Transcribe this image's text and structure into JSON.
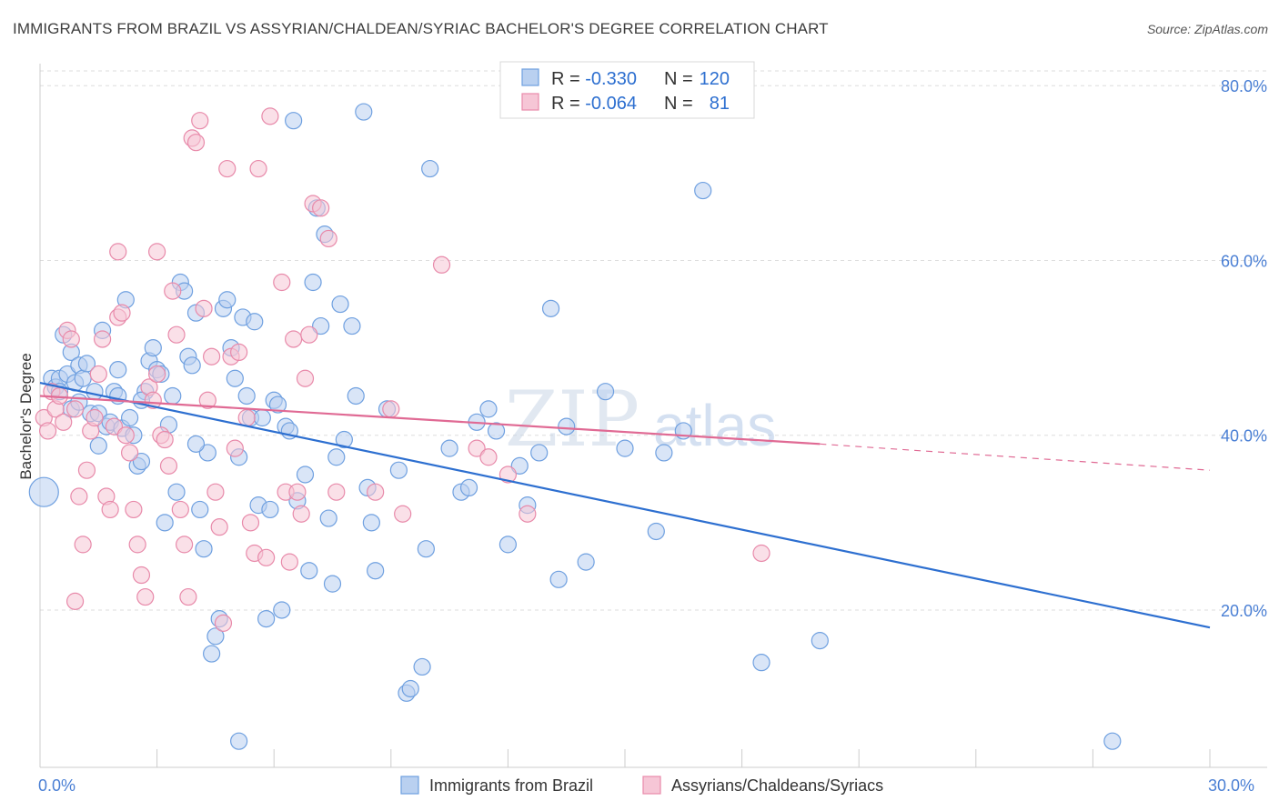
{
  "title": "IMMIGRANTS FROM BRAZIL VS ASSYRIAN/CHALDEAN/SYRIAC BACHELOR'S DEGREE CORRELATION CHART",
  "source": "Source: ZipAtlas.com",
  "watermark": {
    "zip": "ZIP",
    "atlas": "atlas"
  },
  "colors": {
    "blue": "#6fa0e0",
    "blue_fill": "#b9d0f0",
    "blue_line": "#2d6fd0",
    "pink": "#e88aaa",
    "pink_fill": "#f6c6d6",
    "pink_line": "#e06a94",
    "tick": "#4a7fd4",
    "grid": "#dddddd"
  },
  "legend": {
    "rows": [
      {
        "r_label": "R = ",
        "r_value": "-0.330",
        "n_label": "N = ",
        "n_value": "120"
      },
      {
        "r_label": "R = ",
        "r_value": "-0.064",
        "n_label": "N = ",
        "n_value": "81"
      }
    ]
  },
  "chart_data": {
    "type": "scatter",
    "title": "IMMIGRANTS FROM BRAZIL VS ASSYRIAN/CHALDEAN/SYRIAC BACHELOR'S DEGREE CORRELATION CHART",
    "xlabel": "",
    "ylabel": "Bachelor's Degree",
    "xlim": [
      0,
      30
    ],
    "ylim": [
      2,
      82
    ],
    "x_tick_labels": [
      "0.0%",
      "30.0%"
    ],
    "y_ticks": [
      20,
      40,
      60,
      80
    ],
    "y_tick_labels": [
      "20.0%",
      "40.0%",
      "60.0%",
      "80.0%"
    ],
    "grid": true,
    "legend_placement": "top-center",
    "series": [
      {
        "name": "Immigrants from Brazil",
        "r": -0.33,
        "n": 120,
        "trend": {
          "x": [
            0,
            30
          ],
          "y": [
            46.0,
            18.0
          ]
        },
        "points": [
          [
            0.1,
            33.5
          ],
          [
            0.3,
            46.5
          ],
          [
            0.4,
            45.5
          ],
          [
            0.5,
            46.5
          ],
          [
            0.6,
            51.5
          ],
          [
            0.7,
            47
          ],
          [
            0.8,
            49.5
          ],
          [
            0.8,
            43
          ],
          [
            0.9,
            46
          ],
          [
            1.0,
            48.0
          ],
          [
            1.1,
            46.5
          ],
          [
            1.2,
            48.2
          ],
          [
            1.3,
            42.5
          ],
          [
            1.4,
            45.0
          ],
          [
            1.5,
            42.5
          ],
          [
            1.6,
            52.0
          ],
          [
            1.7,
            41.0
          ],
          [
            1.8,
            41.5
          ],
          [
            1.9,
            45.0
          ],
          [
            2.0,
            44.5
          ],
          [
            2.1,
            40.8
          ],
          [
            2.2,
            55.5
          ],
          [
            2.3,
            42.0
          ],
          [
            2.4,
            40.0
          ],
          [
            2.5,
            36.5
          ],
          [
            2.6,
            37.0
          ],
          [
            2.7,
            45.0
          ],
          [
            2.8,
            48.5
          ],
          [
            2.9,
            50.0
          ],
          [
            3.0,
            47.5
          ],
          [
            3.1,
            47.0
          ],
          [
            3.2,
            30.0
          ],
          [
            3.4,
            44.5
          ],
          [
            3.5,
            33.5
          ],
          [
            3.6,
            57.5
          ],
          [
            3.7,
            56.5
          ],
          [
            3.8,
            49.0
          ],
          [
            3.9,
            48.0
          ],
          [
            4.0,
            54.0
          ],
          [
            4.1,
            31.5
          ],
          [
            4.2,
            27.0
          ],
          [
            4.3,
            38.0
          ],
          [
            4.4,
            15.0
          ],
          [
            4.5,
            17.0
          ],
          [
            4.6,
            19.0
          ],
          [
            4.7,
            54.5
          ],
          [
            4.8,
            55.5
          ],
          [
            4.9,
            50.0
          ],
          [
            5.0,
            46.5
          ],
          [
            5.1,
            37.5
          ],
          [
            5.2,
            53.5
          ],
          [
            5.3,
            44.5
          ],
          [
            5.4,
            42.0
          ],
          [
            5.5,
            53.0
          ],
          [
            5.6,
            32.0
          ],
          [
            5.7,
            42.0
          ],
          [
            5.8,
            19.0
          ],
          [
            5.9,
            31.5
          ],
          [
            6.0,
            44.0
          ],
          [
            6.1,
            43.5
          ],
          [
            6.2,
            20.0
          ],
          [
            6.3,
            41.0
          ],
          [
            6.4,
            40.5
          ],
          [
            6.5,
            76.0
          ],
          [
            6.8,
            35.5
          ],
          [
            6.9,
            24.5
          ],
          [
            7.0,
            57.5
          ],
          [
            7.1,
            66.0
          ],
          [
            7.2,
            52.5
          ],
          [
            7.3,
            63.0
          ],
          [
            7.5,
            23.0
          ],
          [
            7.6,
            37.5
          ],
          [
            7.7,
            55.0
          ],
          [
            7.8,
            39.5
          ],
          [
            8.0,
            52.5
          ],
          [
            8.1,
            44.5
          ],
          [
            8.3,
            77.0
          ],
          [
            8.4,
            34.0
          ],
          [
            8.5,
            30.0
          ],
          [
            8.6,
            24.5
          ],
          [
            8.9,
            43.0
          ],
          [
            9.2,
            36.0
          ],
          [
            9.4,
            10.5
          ],
          [
            9.5,
            11.0
          ],
          [
            9.8,
            13.5
          ],
          [
            9.9,
            27.0
          ],
          [
            10.0,
            70.5
          ],
          [
            10.5,
            38.5
          ],
          [
            10.8,
            33.5
          ],
          [
            11.0,
            34.0
          ],
          [
            11.2,
            41.5
          ],
          [
            11.5,
            43.0
          ],
          [
            11.7,
            40.5
          ],
          [
            12.0,
            27.5
          ],
          [
            12.3,
            36.5
          ],
          [
            12.5,
            32.0
          ],
          [
            12.8,
            38.0
          ],
          [
            13.1,
            54.5
          ],
          [
            13.3,
            23.5
          ],
          [
            13.5,
            41.0
          ],
          [
            14.0,
            25.5
          ],
          [
            14.5,
            45.0
          ],
          [
            15.0,
            38.5
          ],
          [
            15.8,
            29.0
          ],
          [
            16.0,
            38.0
          ],
          [
            16.5,
            40.5
          ],
          [
            17.0,
            68.0
          ],
          [
            18.5,
            14.0
          ],
          [
            20.0,
            16.5
          ],
          [
            27.5,
            5.0
          ],
          [
            5.1,
            5.0
          ],
          [
            1.0,
            43.8
          ],
          [
            2.6,
            44.0
          ],
          [
            3.3,
            41.2
          ],
          [
            0.5,
            45.0
          ],
          [
            1.5,
            38.8
          ],
          [
            2.0,
            47.5
          ],
          [
            4.0,
            39.0
          ],
          [
            6.6,
            32.5
          ],
          [
            7.4,
            30.5
          ]
        ]
      },
      {
        "name": "Assyrians/Chaldeans/Syriacs",
        "r": -0.064,
        "n": 81,
        "trend": {
          "x": [
            0,
            20
          ],
          "y": [
            44.5,
            39.0
          ],
          "dashed_x": [
            20,
            30
          ],
          "dashed_y": [
            39.0,
            36.0
          ]
        },
        "points": [
          [
            0.1,
            42.0
          ],
          [
            0.2,
            40.5
          ],
          [
            0.3,
            45.0
          ],
          [
            0.4,
            43.0
          ],
          [
            0.5,
            44.5
          ],
          [
            0.6,
            41.5
          ],
          [
            0.7,
            52.0
          ],
          [
            0.8,
            51.0
          ],
          [
            0.9,
            43.0
          ],
          [
            1.0,
            33.0
          ],
          [
            1.1,
            27.5
          ],
          [
            1.2,
            36.0
          ],
          [
            1.3,
            40.5
          ],
          [
            1.4,
            42.0
          ],
          [
            1.5,
            47.0
          ],
          [
            1.6,
            51.0
          ],
          [
            1.7,
            33.0
          ],
          [
            1.8,
            31.5
          ],
          [
            1.9,
            41.0
          ],
          [
            2.0,
            53.5
          ],
          [
            2.1,
            54.0
          ],
          [
            2.2,
            40.0
          ],
          [
            2.3,
            38.0
          ],
          [
            2.4,
            31.5
          ],
          [
            2.5,
            27.5
          ],
          [
            2.6,
            24.0
          ],
          [
            2.7,
            21.5
          ],
          [
            2.8,
            45.5
          ],
          [
            2.9,
            44.0
          ],
          [
            3.0,
            47.0
          ],
          [
            3.1,
            40.0
          ],
          [
            3.2,
            39.5
          ],
          [
            3.3,
            36.5
          ],
          [
            3.4,
            56.5
          ],
          [
            3.5,
            51.5
          ],
          [
            3.6,
            31.5
          ],
          [
            3.7,
            27.5
          ],
          [
            3.8,
            21.5
          ],
          [
            3.9,
            74.0
          ],
          [
            4.0,
            73.5
          ],
          [
            4.1,
            76.0
          ],
          [
            4.2,
            54.5
          ],
          [
            4.3,
            44.0
          ],
          [
            4.4,
            49.0
          ],
          [
            4.5,
            33.5
          ],
          [
            4.6,
            29.5
          ],
          [
            4.7,
            18.5
          ],
          [
            4.8,
            70.5
          ],
          [
            4.9,
            49.0
          ],
          [
            5.0,
            38.5
          ],
          [
            5.1,
            49.5
          ],
          [
            5.3,
            42.0
          ],
          [
            5.4,
            30.0
          ],
          [
            5.5,
            26.5
          ],
          [
            5.6,
            70.5
          ],
          [
            5.8,
            26.0
          ],
          [
            5.9,
            76.5
          ],
          [
            6.2,
            57.5
          ],
          [
            6.3,
            33.5
          ],
          [
            6.4,
            25.5
          ],
          [
            6.5,
            51.0
          ],
          [
            6.6,
            33.5
          ],
          [
            6.7,
            31.0
          ],
          [
            6.8,
            46.5
          ],
          [
            6.9,
            51.5
          ],
          [
            7.0,
            66.5
          ],
          [
            7.2,
            66.0
          ],
          [
            7.4,
            62.5
          ],
          [
            7.6,
            33.5
          ],
          [
            8.6,
            33.5
          ],
          [
            9.0,
            43.0
          ],
          [
            9.3,
            31.0
          ],
          [
            10.3,
            59.5
          ],
          [
            11.2,
            38.5
          ],
          [
            11.5,
            37.5
          ],
          [
            12.0,
            35.5
          ],
          [
            12.5,
            31.0
          ],
          [
            18.5,
            26.5
          ],
          [
            0.9,
            21.0
          ],
          [
            2.0,
            61.0
          ],
          [
            3.0,
            61.0
          ]
        ]
      }
    ]
  },
  "bottom_legend": [
    "Immigrants from Brazil",
    "Assyrians/Chaldeans/Syriacs"
  ]
}
